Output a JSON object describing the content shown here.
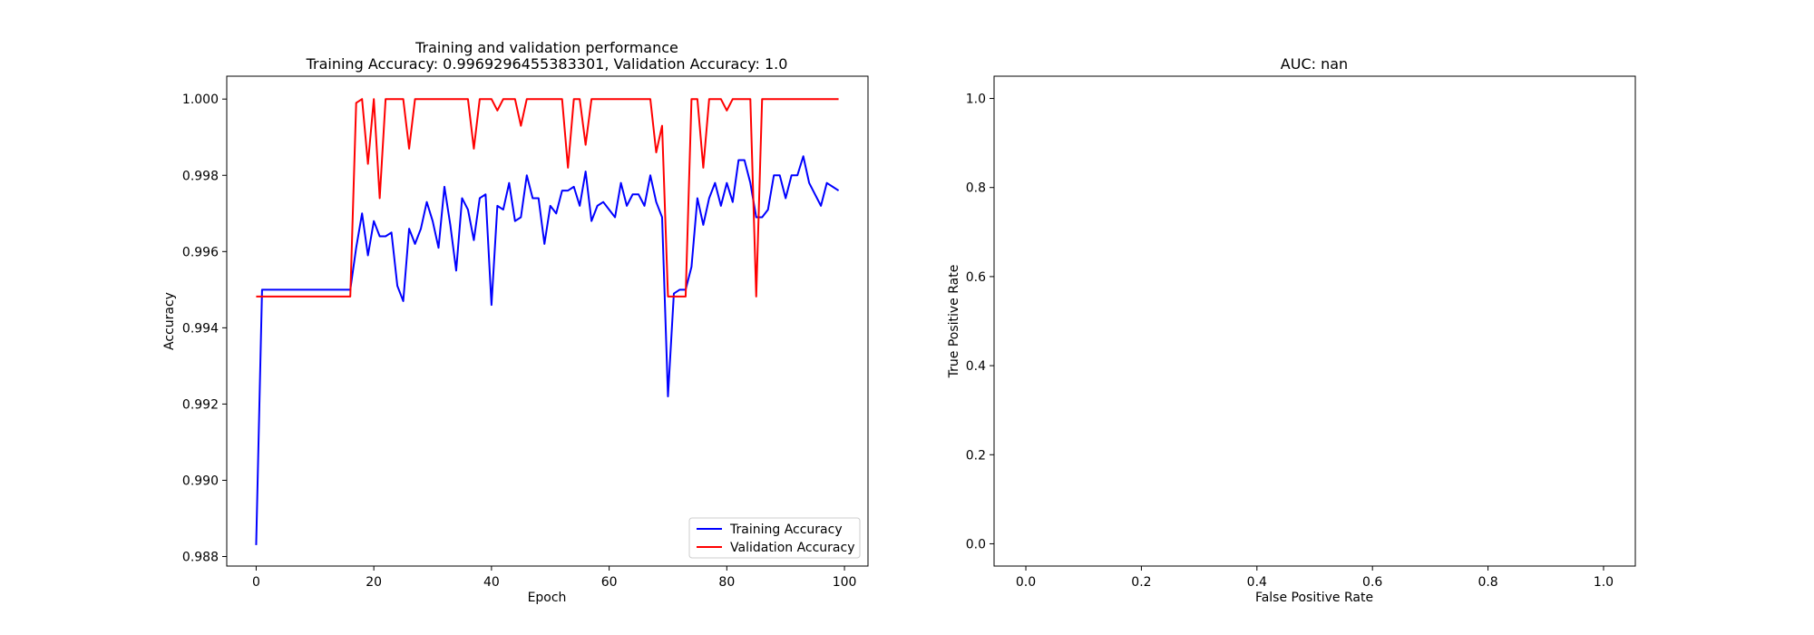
{
  "chart_data": [
    {
      "type": "line",
      "title": "Training and validation performance",
      "subtitle": "Training Accuracy: 0.9969296455383301, Validation Accuracy: 1.0",
      "xlabel": "Epoch",
      "ylabel": "Accuracy",
      "xlim": [
        -5,
        104
      ],
      "ylim": [
        0.98775,
        1.0006
      ],
      "xticks": [
        0,
        20,
        40,
        60,
        80,
        100
      ],
      "yticks": [
        0.988,
        0.99,
        0.992,
        0.994,
        0.996,
        0.998,
        1.0
      ],
      "ytick_labels": [
        "0.988",
        "0.990",
        "0.992",
        "0.994",
        "0.996",
        "0.998",
        "1.000"
      ],
      "grid": false,
      "legend_position": "lower-right",
      "series": [
        {
          "name": "Training Accuracy",
          "color": "#0000ff",
          "x": [
            0,
            1,
            2,
            3,
            4,
            5,
            6,
            7,
            8,
            9,
            10,
            11,
            12,
            13,
            14,
            15,
            16,
            17,
            18,
            19,
            20,
            21,
            22,
            23,
            24,
            25,
            26,
            27,
            28,
            29,
            30,
            31,
            32,
            33,
            34,
            35,
            36,
            37,
            38,
            39,
            40,
            41,
            42,
            43,
            44,
            45,
            46,
            47,
            48,
            49,
            50,
            51,
            52,
            53,
            54,
            55,
            56,
            57,
            58,
            59,
            60,
            61,
            62,
            63,
            64,
            65,
            66,
            67,
            68,
            69,
            70,
            71,
            72,
            73,
            74,
            75,
            76,
            77,
            78,
            79,
            80,
            81,
            82,
            83,
            84,
            85,
            86,
            87,
            88,
            89,
            90,
            91,
            92,
            93,
            94,
            95,
            96,
            97,
            98,
            99
          ],
          "y": [
            0.9883,
            0.995,
            0.995,
            0.995,
            0.995,
            0.995,
            0.995,
            0.995,
            0.995,
            0.995,
            0.995,
            0.995,
            0.995,
            0.995,
            0.995,
            0.995,
            0.995,
            0.9961,
            0.997,
            0.9959,
            0.9968,
            0.9964,
            0.9964,
            0.9965,
            0.9951,
            0.9947,
            0.9966,
            0.9962,
            0.9966,
            0.9973,
            0.9968,
            0.9961,
            0.9977,
            0.9967,
            0.9955,
            0.9974,
            0.9971,
            0.9963,
            0.9974,
            0.9975,
            0.9946,
            0.9972,
            0.9971,
            0.9978,
            0.9968,
            0.9969,
            0.998,
            0.9974,
            0.9974,
            0.9962,
            0.9972,
            0.997,
            0.9976,
            0.9976,
            0.9977,
            0.9972,
            0.9981,
            0.9968,
            0.9972,
            0.9973,
            0.9971,
            0.9969,
            0.9978,
            0.9972,
            0.9975,
            0.9975,
            0.9972,
            0.998,
            0.9973,
            0.9969,
            0.9922,
            0.9949,
            0.995,
            0.995,
            0.9956,
            0.9974,
            0.9967,
            0.9974,
            0.9978,
            0.9972,
            0.9978,
            0.9973,
            0.9984,
            0.9984,
            0.9978,
            0.9969,
            0.9969,
            0.9971,
            0.998,
            0.998,
            0.9974,
            0.998,
            0.998,
            0.9985,
            0.9978,
            0.9975,
            0.9972,
            0.9978,
            0.9977,
            0.9976
          ]
        },
        {
          "name": "Validation Accuracy",
          "color": "#ff0000",
          "x": [
            0,
            1,
            2,
            3,
            4,
            5,
            6,
            7,
            8,
            9,
            10,
            11,
            12,
            13,
            14,
            15,
            16,
            17,
            18,
            19,
            20,
            21,
            22,
            23,
            24,
            25,
            26,
            27,
            28,
            29,
            30,
            31,
            32,
            33,
            34,
            35,
            36,
            37,
            38,
            39,
            40,
            41,
            42,
            43,
            44,
            45,
            46,
            47,
            48,
            49,
            50,
            51,
            52,
            53,
            54,
            55,
            56,
            57,
            58,
            59,
            60,
            61,
            62,
            63,
            64,
            65,
            66,
            67,
            68,
            69,
            70,
            71,
            72,
            73,
            74,
            75,
            76,
            77,
            78,
            79,
            80,
            81,
            82,
            83,
            84,
            85,
            86,
            87,
            88,
            89,
            90,
            91,
            92,
            93,
            94,
            95,
            96,
            97,
            98,
            99
          ],
          "y": [
            0.99482,
            0.99482,
            0.99482,
            0.99482,
            0.99482,
            0.99482,
            0.99482,
            0.99482,
            0.99482,
            0.99482,
            0.99482,
            0.99482,
            0.99482,
            0.99482,
            0.99482,
            0.99482,
            0.99482,
            0.9999,
            1.0,
            0.9983,
            1.0,
            0.9974,
            1.0,
            1.0,
            1.0,
            1.0,
            0.9987,
            1.0,
            1.0,
            1.0,
            1.0,
            1.0,
            1.0,
            1.0,
            1.0,
            1.0,
            1.0,
            0.9987,
            1.0,
            1.0,
            1.0,
            0.9997,
            1.0,
            1.0,
            1.0,
            0.9993,
            1.0,
            1.0,
            1.0,
            1.0,
            1.0,
            1.0,
            1.0,
            0.9982,
            1.0,
            1.0,
            0.9988,
            1.0,
            1.0,
            1.0,
            1.0,
            1.0,
            1.0,
            1.0,
            1.0,
            1.0,
            1.0,
            1.0,
            0.9986,
            0.9993,
            0.99482,
            0.99482,
            0.99482,
            0.99482,
            1.0,
            1.0,
            0.9982,
            1.0,
            1.0,
            1.0,
            0.9997,
            1.0,
            1.0,
            1.0,
            1.0,
            0.99482,
            1.0,
            1.0,
            1.0,
            1.0,
            1.0,
            1.0,
            1.0,
            1.0,
            1.0,
            1.0,
            1.0,
            1.0,
            1.0,
            1.0
          ]
        }
      ]
    },
    {
      "type": "line",
      "title": "AUC: nan",
      "xlabel": "False Positive Rate",
      "ylabel": "True Positive Rate",
      "xlim": [
        -0.055,
        1.055
      ],
      "ylim": [
        -0.05,
        1.05
      ],
      "xticks": [
        0.0,
        0.2,
        0.4,
        0.6,
        0.8,
        1.0
      ],
      "yticks": [
        0.0,
        0.2,
        0.4,
        0.6,
        0.8,
        1.0
      ],
      "xtick_labels": [
        "0.0",
        "0.2",
        "0.4",
        "0.6",
        "0.8",
        "1.0"
      ],
      "ytick_labels": [
        "0.0",
        "0.2",
        "0.4",
        "0.6",
        "0.8",
        "1.0"
      ],
      "grid": false,
      "series": []
    }
  ]
}
